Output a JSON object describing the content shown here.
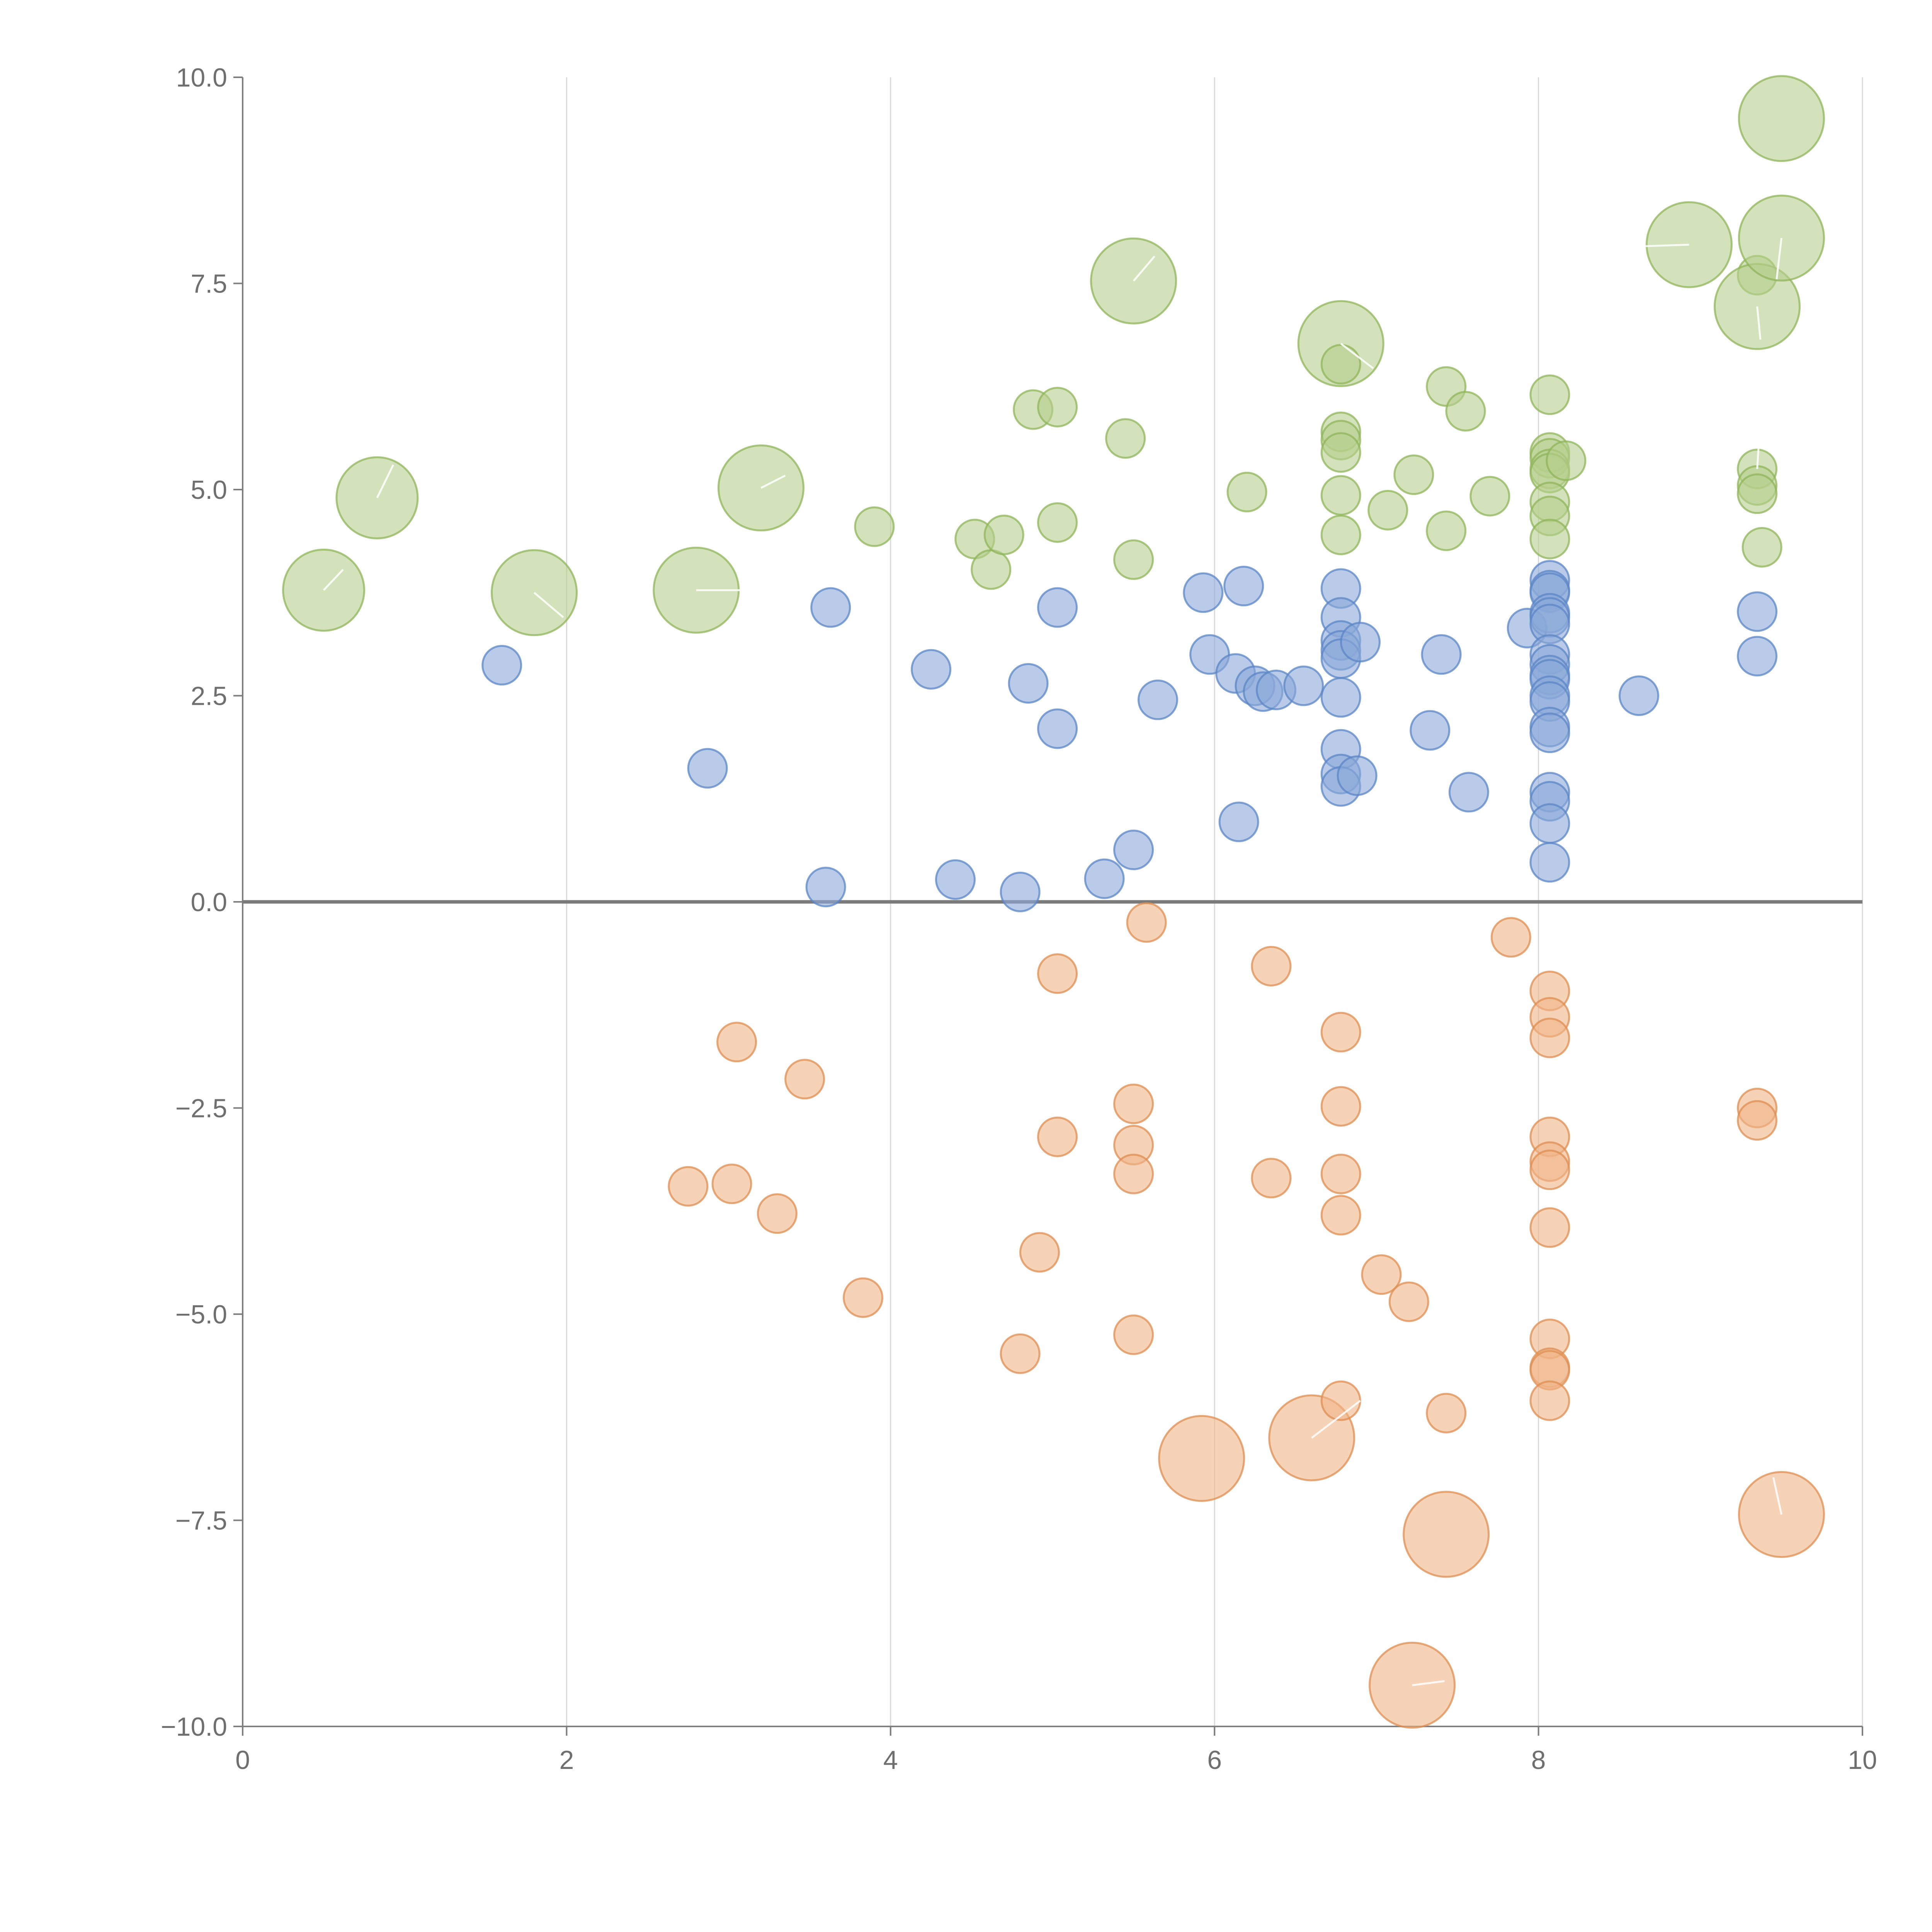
{
  "chart_data": {
    "type": "scatter",
    "title": "",
    "xlabel": "",
    "ylabel": "",
    "xlim": [
      0,
      10
    ],
    "ylim": [
      -10,
      10
    ],
    "grid": "vertical",
    "x_ticks": [
      0,
      2,
      4,
      6,
      8,
      10
    ],
    "x_tick_labels": [
      "0",
      "2",
      "4",
      "6",
      "8",
      "10"
    ],
    "y_ticks": [
      10,
      7.5,
      5,
      2.5,
      0,
      -2.5,
      -5,
      -7.5,
      -10
    ],
    "y_tick_labels": [
      "10.0",
      "7.5",
      "5.0",
      "2.5",
      "0.0",
      "−2.5",
      "−5.0",
      "−7.5",
      "−10.0"
    ],
    "reference_line_y": 0,
    "colors": {
      "green_fill": "#b5cf8c",
      "green_stroke": "#8fb45a",
      "blue_fill": "#8aa9d9",
      "blue_stroke": "#5b86c6",
      "orange_fill": "#f0b487",
      "orange_stroke": "#de8d52"
    },
    "series": [
      {
        "name": "green",
        "size_unit": "bubble size (relative)",
        "points": [
          {
            "x": 0.5,
            "y": 3.78,
            "s": 2.1
          },
          {
            "x": 0.83,
            "y": 4.9,
            "s": 2.1
          },
          {
            "x": 1.8,
            "y": 3.75,
            "s": 2.2
          },
          {
            "x": 2.8,
            "y": 3.78,
            "s": 2.2
          },
          {
            "x": 3.2,
            "y": 5.02,
            "s": 2.2
          },
          {
            "x": 3.9,
            "y": 4.55,
            "s": 1
          },
          {
            "x": 4.52,
            "y": 4.4,
            "s": 1
          },
          {
            "x": 4.62,
            "y": 4.03,
            "s": 1
          },
          {
            "x": 4.7,
            "y": 4.45,
            "s": 1
          },
          {
            "x": 4.88,
            "y": 5.97,
            "s": 1
          },
          {
            "x": 5.03,
            "y": 6.0,
            "s": 1
          },
          {
            "x": 5.03,
            "y": 4.6,
            "s": 1
          },
          {
            "x": 5.45,
            "y": 5.62,
            "s": 1
          },
          {
            "x": 5.5,
            "y": 4.15,
            "s": 1
          },
          {
            "x": 5.5,
            "y": 7.53,
            "s": 2.2
          },
          {
            "x": 6.2,
            "y": 4.97,
            "s": 1
          },
          {
            "x": 6.78,
            "y": 6.77,
            "s": 2.2
          },
          {
            "x": 6.78,
            "y": 6.52,
            "s": 1
          },
          {
            "x": 6.78,
            "y": 5.7,
            "s": 1
          },
          {
            "x": 6.78,
            "y": 5.6,
            "s": 1
          },
          {
            "x": 6.78,
            "y": 5.45,
            "s": 1
          },
          {
            "x": 6.78,
            "y": 4.93,
            "s": 1
          },
          {
            "x": 6.78,
            "y": 4.45,
            "s": 1
          },
          {
            "x": 7.07,
            "y": 4.75,
            "s": 1
          },
          {
            "x": 7.23,
            "y": 5.18,
            "s": 1
          },
          {
            "x": 7.43,
            "y": 6.25,
            "s": 1
          },
          {
            "x": 7.43,
            "y": 4.5,
            "s": 1
          },
          {
            "x": 7.55,
            "y": 5.95,
            "s": 1
          },
          {
            "x": 7.7,
            "y": 4.92,
            "s": 1
          },
          {
            "x": 8.07,
            "y": 6.15,
            "s": 1
          },
          {
            "x": 8.07,
            "y": 5.45,
            "s": 1
          },
          {
            "x": 8.07,
            "y": 5.38,
            "s": 1
          },
          {
            "x": 8.07,
            "y": 5.25,
            "s": 1
          },
          {
            "x": 8.07,
            "y": 5.2,
            "s": 1
          },
          {
            "x": 8.07,
            "y": 4.85,
            "s": 1
          },
          {
            "x": 8.07,
            "y": 4.68,
            "s": 1
          },
          {
            "x": 8.07,
            "y": 4.4,
            "s": 1
          },
          {
            "x": 8.17,
            "y": 5.35,
            "s": 1
          },
          {
            "x": 8.93,
            "y": 7.97,
            "s": 2.2
          },
          {
            "x": 9.35,
            "y": 7.6,
            "s": 1
          },
          {
            "x": 9.35,
            "y": 7.22,
            "s": 2.2
          },
          {
            "x": 9.35,
            "y": 5.25,
            "s": 1
          },
          {
            "x": 9.35,
            "y": 5.05,
            "s": 1
          },
          {
            "x": 9.35,
            "y": 4.95,
            "s": 1
          },
          {
            "x": 9.38,
            "y": 4.3,
            "s": 1
          },
          {
            "x": 9.5,
            "y": 9.5,
            "s": 2.2
          },
          {
            "x": 9.5,
            "y": 8.05,
            "s": 2.2
          }
        ]
      },
      {
        "name": "blue",
        "size_unit": "bubble size (relative)",
        "points": [
          {
            "x": 1.6,
            "y": 2.87,
            "s": 1
          },
          {
            "x": 2.87,
            "y": 1.62,
            "s": 1
          },
          {
            "x": 3.6,
            "y": 0.18,
            "s": 1
          },
          {
            "x": 3.63,
            "y": 3.57,
            "s": 1
          },
          {
            "x": 4.25,
            "y": 2.82,
            "s": 1
          },
          {
            "x": 4.4,
            "y": 0.27,
            "s": 1
          },
          {
            "x": 4.8,
            "y": 0.12,
            "s": 1
          },
          {
            "x": 4.85,
            "y": 2.65,
            "s": 1
          },
          {
            "x": 5.03,
            "y": 3.57,
            "s": 1
          },
          {
            "x": 5.03,
            "y": 2.1,
            "s": 1
          },
          {
            "x": 5.32,
            "y": 0.28,
            "s": 1
          },
          {
            "x": 5.5,
            "y": 0.63,
            "s": 1
          },
          {
            "x": 5.65,
            "y": 2.45,
            "s": 1
          },
          {
            "x": 5.93,
            "y": 3.75,
            "s": 1
          },
          {
            "x": 5.97,
            "y": 3.0,
            "s": 1
          },
          {
            "x": 6.13,
            "y": 2.77,
            "s": 1
          },
          {
            "x": 6.15,
            "y": 0.97,
            "s": 1
          },
          {
            "x": 6.18,
            "y": 3.83,
            "s": 1
          },
          {
            "x": 6.25,
            "y": 2.62,
            "s": 1
          },
          {
            "x": 6.3,
            "y": 2.55,
            "s": 1
          },
          {
            "x": 6.38,
            "y": 2.57,
            "s": 1
          },
          {
            "x": 6.55,
            "y": 2.62,
            "s": 1
          },
          {
            "x": 6.78,
            "y": 3.8,
            "s": 1
          },
          {
            "x": 6.78,
            "y": 3.45,
            "s": 1
          },
          {
            "x": 6.78,
            "y": 3.17,
            "s": 1
          },
          {
            "x": 6.78,
            "y": 3.05,
            "s": 1
          },
          {
            "x": 6.78,
            "y": 2.95,
            "s": 1
          },
          {
            "x": 6.78,
            "y": 2.48,
            "s": 1
          },
          {
            "x": 6.78,
            "y": 1.85,
            "s": 1
          },
          {
            "x": 6.78,
            "y": 1.55,
            "s": 1
          },
          {
            "x": 6.78,
            "y": 1.4,
            "s": 1
          },
          {
            "x": 6.88,
            "y": 1.53,
            "s": 1
          },
          {
            "x": 6.9,
            "y": 3.15,
            "s": 1
          },
          {
            "x": 7.33,
            "y": 2.08,
            "s": 1
          },
          {
            "x": 7.4,
            "y": 3.0,
            "s": 1
          },
          {
            "x": 7.57,
            "y": 1.33,
            "s": 1
          },
          {
            "x": 7.93,
            "y": 3.32,
            "s": 1
          },
          {
            "x": 8.07,
            "y": 3.9,
            "s": 1
          },
          {
            "x": 8.07,
            "y": 3.78,
            "s": 1
          },
          {
            "x": 8.07,
            "y": 3.75,
            "s": 1
          },
          {
            "x": 8.07,
            "y": 3.5,
            "s": 1
          },
          {
            "x": 8.07,
            "y": 3.45,
            "s": 1
          },
          {
            "x": 8.07,
            "y": 3.37,
            "s": 1
          },
          {
            "x": 8.07,
            "y": 3.0,
            "s": 1
          },
          {
            "x": 8.07,
            "y": 2.88,
            "s": 1
          },
          {
            "x": 8.07,
            "y": 2.75,
            "s": 1
          },
          {
            "x": 8.07,
            "y": 2.7,
            "s": 1
          },
          {
            "x": 8.07,
            "y": 2.5,
            "s": 1
          },
          {
            "x": 8.07,
            "y": 2.43,
            "s": 1
          },
          {
            "x": 8.07,
            "y": 2.12,
            "s": 1
          },
          {
            "x": 8.07,
            "y": 2.05,
            "s": 1
          },
          {
            "x": 8.07,
            "y": 1.33,
            "s": 1
          },
          {
            "x": 8.07,
            "y": 1.22,
            "s": 1
          },
          {
            "x": 8.07,
            "y": 0.95,
            "s": 1
          },
          {
            "x": 8.07,
            "y": 0.48,
            "s": 1
          },
          {
            "x": 8.62,
            "y": 2.5,
            "s": 1
          },
          {
            "x": 9.35,
            "y": 3.52,
            "s": 1
          },
          {
            "x": 9.35,
            "y": 2.98,
            "s": 1
          }
        ]
      },
      {
        "name": "orange",
        "size_unit": "bubble size (relative)",
        "points": [
          {
            "x": 2.75,
            "y": -3.45,
            "s": 1
          },
          {
            "x": 3.02,
            "y": -3.42,
            "s": 1
          },
          {
            "x": 3.05,
            "y": -1.7,
            "s": 1
          },
          {
            "x": 3.3,
            "y": -3.78,
            "s": 1
          },
          {
            "x": 3.47,
            "y": -2.15,
            "s": 1
          },
          {
            "x": 3.83,
            "y": -4.8,
            "s": 1
          },
          {
            "x": 4.8,
            "y": -5.48,
            "s": 1
          },
          {
            "x": 4.92,
            "y": -4.25,
            "s": 1
          },
          {
            "x": 5.03,
            "y": -0.87,
            "s": 1
          },
          {
            "x": 5.03,
            "y": -2.85,
            "s": 1
          },
          {
            "x": 5.5,
            "y": -2.45,
            "s": 1
          },
          {
            "x": 5.5,
            "y": -2.95,
            "s": 1
          },
          {
            "x": 5.5,
            "y": -3.3,
            "s": 1
          },
          {
            "x": 5.5,
            "y": -5.25,
            "s": 1
          },
          {
            "x": 5.58,
            "y": -0.25,
            "s": 1
          },
          {
            "x": 5.92,
            "y": -6.75,
            "s": 2.2
          },
          {
            "x": 6.35,
            "y": -0.78,
            "s": 1
          },
          {
            "x": 6.35,
            "y": -3.35,
            "s": 1
          },
          {
            "x": 6.6,
            "y": -6.5,
            "s": 2.2
          },
          {
            "x": 6.78,
            "y": -1.58,
            "s": 1
          },
          {
            "x": 6.78,
            "y": -2.48,
            "s": 1
          },
          {
            "x": 6.78,
            "y": -3.3,
            "s": 1
          },
          {
            "x": 6.78,
            "y": -3.8,
            "s": 1
          },
          {
            "x": 6.78,
            "y": -6.05,
            "s": 1
          },
          {
            "x": 7.03,
            "y": -4.52,
            "s": 1
          },
          {
            "x": 7.2,
            "y": -4.85,
            "s": 1
          },
          {
            "x": 7.22,
            "y": -9.5,
            "s": 2.2
          },
          {
            "x": 7.43,
            "y": -6.2,
            "s": 1
          },
          {
            "x": 7.43,
            "y": -7.67,
            "s": 2.2
          },
          {
            "x": 7.83,
            "y": -0.43,
            "s": 1
          },
          {
            "x": 8.07,
            "y": -1.08,
            "s": 1
          },
          {
            "x": 8.07,
            "y": -1.4,
            "s": 1
          },
          {
            "x": 8.07,
            "y": -1.65,
            "s": 1
          },
          {
            "x": 8.07,
            "y": -2.85,
            "s": 1
          },
          {
            "x": 8.07,
            "y": -3.15,
            "s": 1
          },
          {
            "x": 8.07,
            "y": -3.25,
            "s": 1
          },
          {
            "x": 8.07,
            "y": -3.95,
            "s": 1
          },
          {
            "x": 8.07,
            "y": -5.3,
            "s": 1
          },
          {
            "x": 8.07,
            "y": -5.65,
            "s": 1
          },
          {
            "x": 8.07,
            "y": -5.68,
            "s": 1
          },
          {
            "x": 8.07,
            "y": -6.05,
            "s": 1
          },
          {
            "x": 9.35,
            "y": -2.5,
            "s": 1
          },
          {
            "x": 9.35,
            "y": -2.65,
            "s": 1
          },
          {
            "x": 9.5,
            "y": -7.43,
            "s": 2.2
          }
        ]
      }
    ],
    "leader_lines": [
      {
        "x": 0.5,
        "y": 3.78,
        "dx": 0.12,
        "dy": 0.25
      },
      {
        "x": 0.83,
        "y": 4.9,
        "dx": 0.1,
        "dy": 0.4
      },
      {
        "x": 1.8,
        "y": 3.75,
        "dx": 0.18,
        "dy": -0.3
      },
      {
        "x": 2.8,
        "y": 3.78,
        "dx": 0.3,
        "dy": 0.0
      },
      {
        "x": 3.2,
        "y": 5.02,
        "dx": 0.15,
        "dy": 0.15
      },
      {
        "x": 5.5,
        "y": 7.53,
        "dx": 0.13,
        "dy": 0.3
      },
      {
        "x": 6.78,
        "y": 6.77,
        "dx": 0.2,
        "dy": -0.3
      },
      {
        "x": 8.93,
        "y": 7.97,
        "dx": -0.3,
        "dy": -0.02
      },
      {
        "x": 9.35,
        "y": 7.22,
        "dx": 0.02,
        "dy": -0.4
      },
      {
        "x": 9.35,
        "y": 5.25,
        "dx": 0.02,
        "dy": 0.6
      },
      {
        "x": 9.5,
        "y": 8.05,
        "dx": -0.03,
        "dy": -0.5
      },
      {
        "x": 6.6,
        "y": -6.5,
        "dx": 0.3,
        "dy": 0.45
      },
      {
        "x": 7.22,
        "y": -9.5,
        "dx": 0.2,
        "dy": 0.05
      },
      {
        "x": 9.5,
        "y": -7.43,
        "dx": -0.05,
        "dy": 0.45
      }
    ]
  }
}
